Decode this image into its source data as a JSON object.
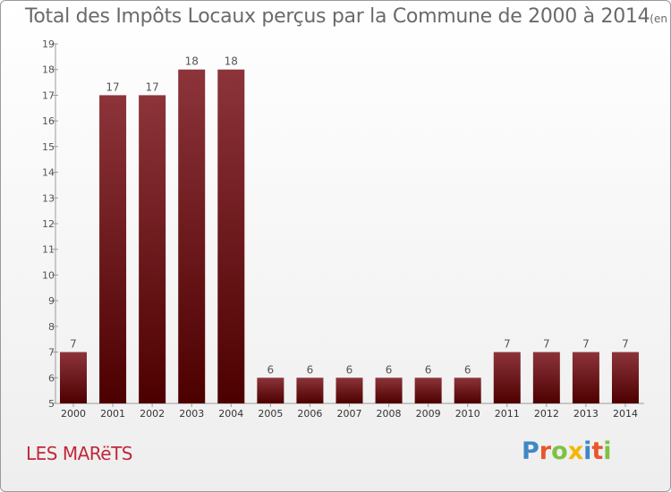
{
  "title": "Total des Impôts Locaux perçus par la Commune de 2000 à 2014",
  "title_unit": "(en milliers d'€)",
  "commune": "LES MARëTS",
  "brand": "Proxiti",
  "brand_colors": [
    "#3f88c5",
    "#e8552d",
    "#7dc243",
    "#f2b705",
    "#3f88c5",
    "#e8552d",
    "#7dc243"
  ],
  "colors": {
    "bar_top": "#8c343a",
    "bar_bottom": "#4d0000",
    "commune": "#c0293a",
    "title": "#6a6a6a"
  },
  "chart_data": {
    "type": "bar",
    "title": "Total des Impôts Locaux perçus par la Commune de 2000 à 2014",
    "categories": [
      "2000",
      "2001",
      "2002",
      "2003",
      "2004",
      "2005",
      "2006",
      "2007",
      "2008",
      "2009",
      "2010",
      "2011",
      "2012",
      "2013",
      "2014"
    ],
    "values": [
      7,
      17,
      17,
      18,
      18,
      6,
      6,
      6,
      6,
      6,
      6,
      7,
      7,
      7,
      7
    ],
    "ylim": [
      5,
      19
    ],
    "yticks": [
      5,
      6,
      7,
      8,
      9,
      10,
      11,
      12,
      13,
      14,
      15,
      16,
      17,
      18,
      19
    ],
    "grid": false,
    "data_labels": true
  }
}
